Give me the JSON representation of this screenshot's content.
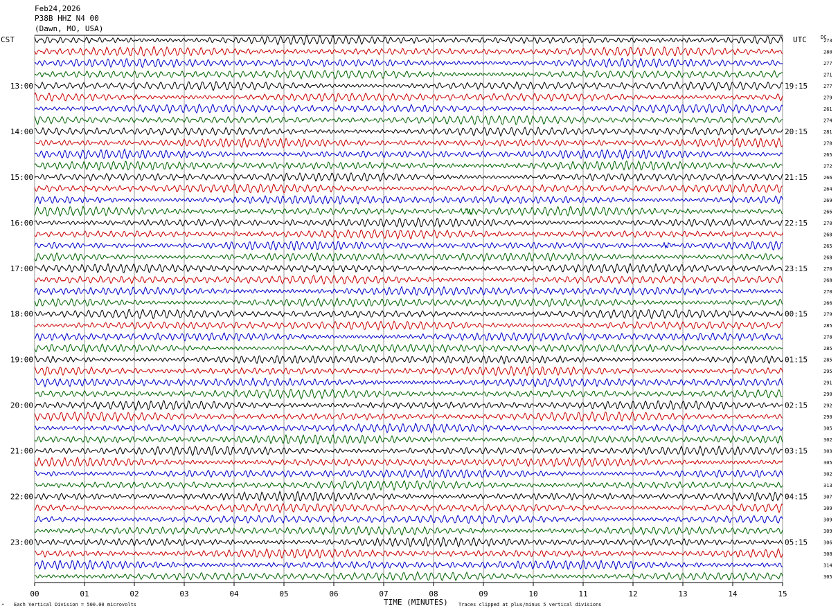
{
  "header": {
    "date": "Feb24,2026",
    "station": "P38B HHZ N4 00",
    "location": "(Dawn, MO, USA)"
  },
  "axes": {
    "left_zone": "CST",
    "right_zone": "UTC",
    "dc_label": "DC",
    "x_title": "TIME (MINUTES)",
    "scale_note": "Each Vertical Division =  500.00 microvolts",
    "clip_note": "Traces clipped at plus/minus 5 vertical divisions"
  },
  "chart_data": {
    "type": "line",
    "title": "",
    "x_ticks": [
      "00",
      "01",
      "02",
      "03",
      "04",
      "05",
      "06",
      "07",
      "08",
      "09",
      "10",
      "11",
      "12",
      "13",
      "14",
      "15"
    ],
    "xlim": [
      0,
      15
    ],
    "trace_colors": [
      "#000000",
      "#cc0000",
      "#0000cc",
      "#006400"
    ],
    "left_hour_labels": [
      "13:00",
      "14:00",
      "15:00",
      "16:00",
      "17:00",
      "18:00",
      "19:00",
      "20:00",
      "21:00",
      "22:00",
      "23:00"
    ],
    "right_hour_labels": [
      "19:15",
      "20:15",
      "21:15",
      "22:15",
      "23:15",
      "00:15",
      "01:15",
      "02:15",
      "03:15",
      "04:15",
      "05:15"
    ],
    "dc_values": [
      "273",
      "280",
      "277",
      "271",
      "277",
      "279",
      "261",
      "274",
      "281",
      "270",
      "265",
      "272",
      "266",
      "264",
      "269",
      "266",
      "270",
      "268",
      "265",
      "268",
      "270",
      "268",
      "270",
      "266",
      "279",
      "285",
      "278",
      "285",
      "285",
      "295",
      "291",
      "290",
      "292",
      "290",
      "305",
      "302",
      "303",
      "305",
      "302",
      "313",
      "307",
      "309",
      "309",
      "309",
      "306",
      "308",
      "314",
      "305"
    ],
    "events": [
      {
        "trace": 15,
        "minute": 8.7,
        "note": "burst"
      },
      {
        "trace": 18,
        "minute": 12.7,
        "note": "burst"
      }
    ]
  }
}
